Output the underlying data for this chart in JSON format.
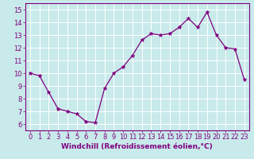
{
  "x": [
    0,
    1,
    2,
    3,
    4,
    5,
    6,
    7,
    8,
    9,
    10,
    11,
    12,
    13,
    14,
    15,
    16,
    17,
    18,
    19,
    20,
    21,
    22,
    23
  ],
  "y": [
    10.0,
    9.8,
    8.5,
    7.2,
    7.0,
    6.8,
    6.2,
    6.1,
    8.8,
    10.0,
    10.5,
    11.4,
    12.6,
    13.1,
    13.0,
    13.1,
    13.6,
    14.3,
    13.6,
    14.8,
    13.0,
    12.0,
    11.9,
    9.5
  ],
  "line_color": "#800080",
  "marker": "*",
  "marker_size": 3.5,
  "bg_color": "#c8eaea",
  "grid_color": "#ffffff",
  "xlabel": "Windchill (Refroidissement éolien,°C)",
  "xlabel_fontsize": 6.5,
  "tick_fontsize": 6.0,
  "xlim": [
    -0.5,
    23.5
  ],
  "ylim": [
    5.5,
    15.5
  ],
  "yticks": [
    6,
    7,
    8,
    9,
    10,
    11,
    12,
    13,
    14,
    15
  ],
  "xticks": [
    0,
    1,
    2,
    3,
    4,
    5,
    6,
    7,
    8,
    9,
    10,
    11,
    12,
    13,
    14,
    15,
    16,
    17,
    18,
    19,
    20,
    21,
    22,
    23
  ]
}
